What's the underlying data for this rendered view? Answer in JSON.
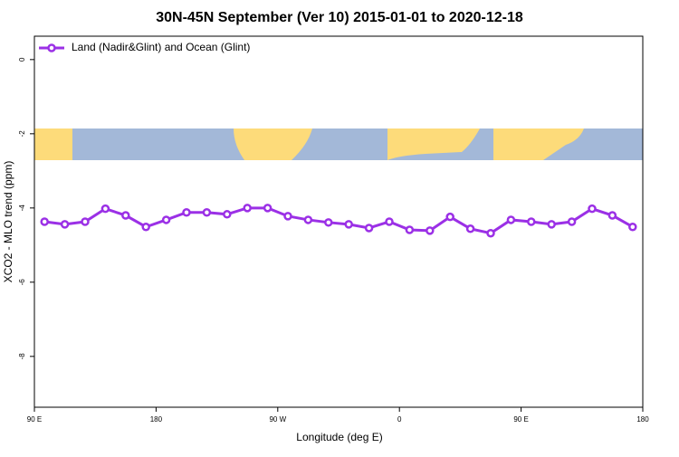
{
  "chart_data": {
    "type": "line",
    "title": "30N-45N September (Ver 10)   2015-01-01 to 2020-12-18",
    "x_label": "Longitude (deg E)",
    "y_label": "XCO2 - MLO trend (ppm)",
    "xlim": [
      90,
      540
    ],
    "xticks": [
      {
        "value": 90,
        "label": "90 E"
      },
      {
        "value": 180,
        "label": "180"
      },
      {
        "value": 270,
        "label": "90 W"
      },
      {
        "value": 360,
        "label": "0"
      },
      {
        "value": 450,
        "label": "90 E"
      },
      {
        "value": 540,
        "label": "180"
      }
    ],
    "ylim": [
      -9.37,
      0.63
    ],
    "yticks": [
      0,
      -2,
      -4,
      -6,
      -8
    ],
    "legend": "top-left",
    "x": [
      97.5,
      112.5,
      127.5,
      142.5,
      157.5,
      172.5,
      187.5,
      202.5,
      217.5,
      232.5,
      247.5,
      262.5,
      277.5,
      292.5,
      307.5,
      322.5,
      337.5,
      352.5,
      367.5,
      382.5,
      397.5,
      412.5,
      427.5,
      442.5,
      457.5,
      472.5,
      487.5,
      502.5,
      517.5,
      532.5
    ],
    "series": [
      {
        "name": "Land (Nadir&Glint) and Ocean (Glint)",
        "color": "#9b30e6",
        "values": [
          -4.37,
          -4.44,
          -4.37,
          -4.02,
          -4.2,
          -4.51,
          -4.32,
          -4.12,
          -4.12,
          -4.17,
          -4.0,
          -4.0,
          -4.22,
          -4.32,
          -4.39,
          -4.44,
          -4.54,
          -4.37,
          -4.59,
          -4.61,
          -4.24,
          -4.56,
          -4.68,
          -4.32,
          -4.37,
          -4.44,
          -4.37,
          -4.02,
          -4.2,
          -4.51
        ]
      }
    ]
  }
}
